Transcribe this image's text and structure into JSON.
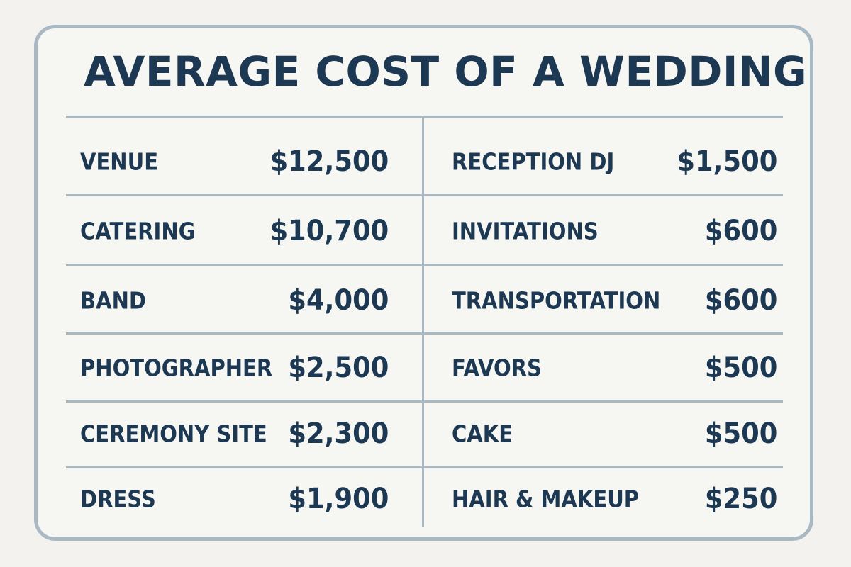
{
  "chart_data": {
    "type": "table",
    "title": "AVERAGE COST OF A WEDDING",
    "columns": [
      {
        "rows": [
          {
            "category": "VENUE",
            "value": "$12,500",
            "amount": 12500
          },
          {
            "category": "CATERING",
            "value": "$10,700",
            "amount": 10700
          },
          {
            "category": "BAND",
            "value": "$4,000",
            "amount": 4000
          },
          {
            "category": "PHOTOGRAPHER",
            "value": "$2,500",
            "amount": 2500
          },
          {
            "category": "CEREMONY SITE",
            "value": "$2,300",
            "amount": 2300
          },
          {
            "category": "DRESS",
            "value": "$1,900",
            "amount": 1900
          }
        ]
      },
      {
        "rows": [
          {
            "category": "RECEPTION DJ",
            "value": "$1,500",
            "amount": 1500
          },
          {
            "category": "INVITATIONS",
            "value": "$600",
            "amount": 600
          },
          {
            "category": "TRANSPORTATION",
            "value": "$600",
            "amount": 600
          },
          {
            "category": "FAVORS",
            "value": "$500",
            "amount": 500
          },
          {
            "category": "CAKE",
            "value": "$500",
            "amount": 500
          },
          {
            "category": "HAIR & MAKEUP",
            "value": "$250",
            "amount": 250
          }
        ]
      }
    ]
  },
  "colors": {
    "text": "#1c3852",
    "border": "#a9b9c4",
    "background": "#f3f2ef"
  }
}
